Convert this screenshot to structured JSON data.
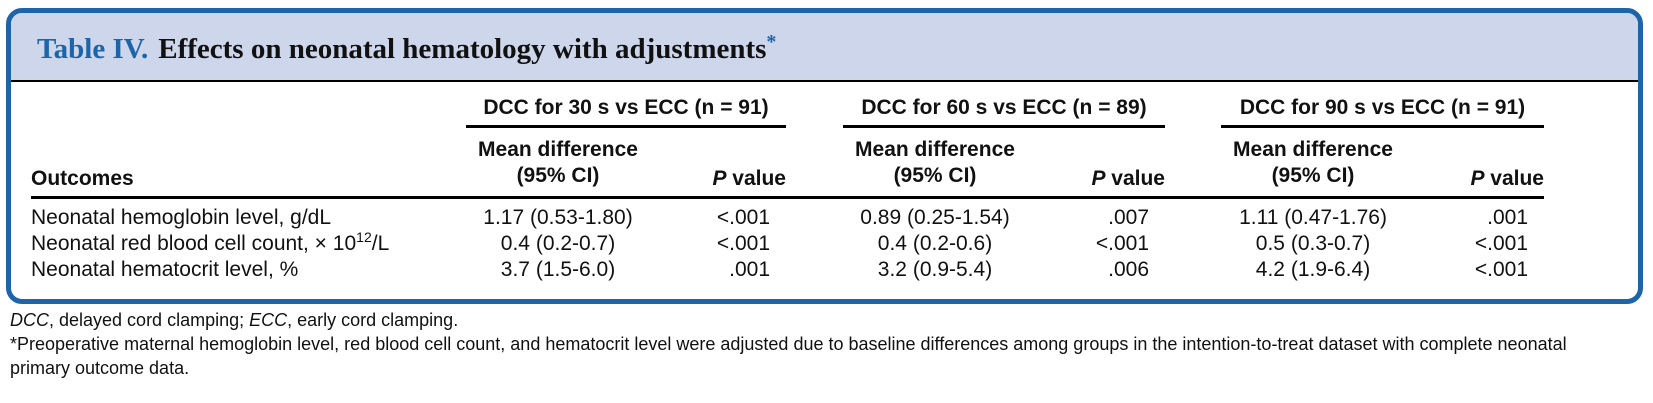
{
  "table": {
    "number": "Table IV.",
    "title": "Effects on neonatal hematology with adjustments",
    "title_mark": "*",
    "groups": [
      {
        "label": "DCC for 30 s vs ECC (n = 91)"
      },
      {
        "label": "DCC for 60 s vs ECC (n = 89)"
      },
      {
        "label": "DCC for 90 s vs ECC (n = 91)"
      }
    ],
    "headers": {
      "outcomes": "Outcomes",
      "mean_diff_line1": "Mean difference",
      "mean_diff_line2": "(95% CI)",
      "p_italic": "P",
      "p_rest": " value"
    },
    "rows": [
      {
        "label": "Neonatal hemoglobin level, g/dL",
        "cells": [
          {
            "md": "1.17 (0.53-1.80)",
            "p": "<.001"
          },
          {
            "md": "0.89 (0.25-1.54)",
            "p": ".007"
          },
          {
            "md": "1.11 (0.47-1.76)",
            "p": ".001"
          }
        ]
      },
      {
        "label_pre": "Neonatal red blood cell count, × 10",
        "label_sup": "12",
        "label_post": "/L",
        "cells": [
          {
            "md": "0.4 (0.2-0.7)",
            "p": "<.001"
          },
          {
            "md": "0.4 (0.2-0.6)",
            "p": "<.001"
          },
          {
            "md": "0.5 (0.3-0.7)",
            "p": "<.001"
          }
        ]
      },
      {
        "label": "Neonatal hematocrit level, %",
        "cells": [
          {
            "md": "3.7 (1.5-6.0)",
            "p": ".001"
          },
          {
            "md": "3.2 (0.9-5.4)",
            "p": ".006"
          },
          {
            "md": "4.2 (1.9-6.4)",
            "p": "<.001"
          }
        ]
      }
    ]
  },
  "footnotes": {
    "abbr_dcc": "DCC",
    "abbr_dcc_def": ", delayed cord clamping; ",
    "abbr_ecc": "ECC",
    "abbr_ecc_def": ", early cord clamping.",
    "note_line1": "*Preoperative maternal hemoglobin level, red blood cell count, and hematocrit level were adjusted due to baseline differences among groups in the intention-to-treat dataset with complete neonatal",
    "note_line2": "primary outcome data."
  },
  "colors": {
    "frame": "#1d64a8",
    "title_bar": "#cdd6ea",
    "accent_text": "#1d64a8"
  }
}
